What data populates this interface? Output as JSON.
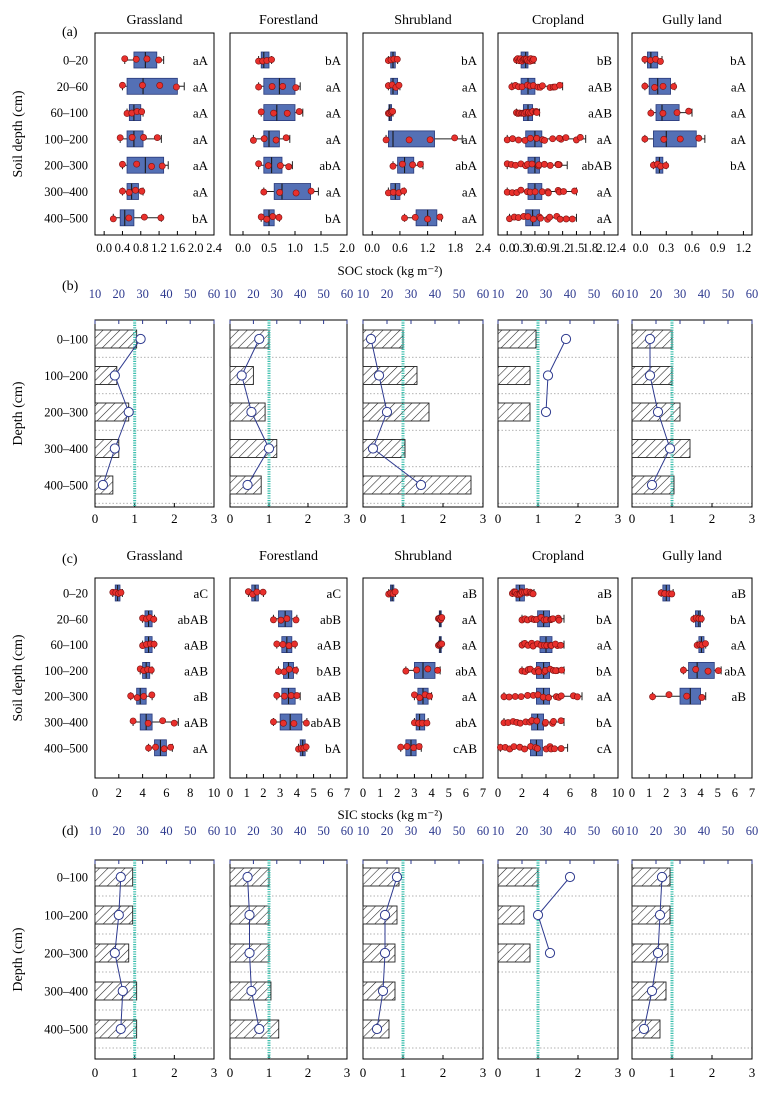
{
  "figure": {
    "panel_labels": [
      "(a)",
      "(b)",
      "(c)",
      "(d)"
    ],
    "colors": {
      "box": "#5470b5",
      "dot": "#e8302c",
      "axis_top": "#2e3a8f",
      "ref_line": "#3dbfae",
      "profile": "#2e3a8f",
      "grid_dot": "#999999",
      "grid_blue": "#3446c0",
      "grid_orange": "#d08a3a"
    }
  },
  "chart_data": [
    {
      "id": "a",
      "type": "box",
      "panel_label": "(a)",
      "ylabel": "Soil depth (cm)",
      "xlabel": "SOC stock (kg m⁻²)",
      "depths": [
        "0–20",
        "20–60",
        "60–100",
        "100–200",
        "200–300",
        "300–400",
        "400–500"
      ],
      "subplots": [
        {
          "title": "Grassland",
          "xlim": [
            -0.2,
            2.4
          ],
          "ticks": [
            0.0,
            0.4,
            0.8,
            1.2,
            1.6,
            2.0,
            2.4
          ],
          "tick_labels": [
            "0.0",
            "0.4",
            "0.8",
            "1.2",
            "1.6",
            "2.0",
            "2.4"
          ],
          "boxes": [
            [
              0.45,
              0.65,
              0.9,
              1.15,
              1.3
            ],
            [
              0.4,
              0.5,
              0.85,
              1.6,
              1.75
            ],
            [
              0.5,
              0.55,
              0.65,
              0.8,
              0.85
            ],
            [
              0.35,
              0.5,
              0.65,
              0.85,
              1.25
            ],
            [
              0.4,
              0.5,
              0.9,
              1.3,
              1.4
            ],
            [
              0.4,
              0.5,
              0.6,
              0.75,
              0.85
            ],
            [
              0.2,
              0.35,
              0.45,
              0.65,
              1.25
            ]
          ],
          "letters": [
            "aA",
            "aA",
            "aA",
            "aA",
            "aA",
            "aA",
            "bA"
          ]
        },
        {
          "title": "Forestland",
          "xlim": [
            -0.25,
            2.0
          ],
          "ticks": [
            0.0,
            0.5,
            1.0,
            1.5,
            2.0
          ],
          "tick_labels": [
            "0.0",
            "0.5",
            "1.0",
            "1.5",
            "2.0"
          ],
          "boxes": [
            [
              0.3,
              0.35,
              0.4,
              0.5,
              0.55
            ],
            [
              0.3,
              0.4,
              0.7,
              1.0,
              1.1
            ],
            [
              0.35,
              0.4,
              0.65,
              1.0,
              1.15
            ],
            [
              0.2,
              0.4,
              0.5,
              0.7,
              0.9
            ],
            [
              0.3,
              0.4,
              0.55,
              0.75,
              0.95
            ],
            [
              0.4,
              0.6,
              0.75,
              1.3,
              1.45
            ],
            [
              0.35,
              0.4,
              0.5,
              0.6,
              0.7
            ]
          ],
          "letters": [
            "bA",
            "aA",
            "aA",
            "aA",
            "abA",
            "aA",
            "bA"
          ]
        },
        {
          "title": "Shrubland",
          "xlim": [
            -0.2,
            2.4
          ],
          "ticks": [
            0.0,
            0.6,
            1.2,
            1.8,
            2.4
          ],
          "tick_labels": [
            "0.0",
            "0.6",
            "1.2",
            "1.8",
            "2.4"
          ],
          "boxes": [
            [
              0.35,
              0.4,
              0.45,
              0.5,
              0.55
            ],
            [
              0.35,
              0.4,
              0.45,
              0.55,
              0.6
            ],
            [
              0.35,
              0.36,
              0.38,
              0.42,
              0.45
            ],
            [
              0.3,
              0.35,
              0.45,
              1.35,
              1.95
            ],
            [
              0.45,
              0.55,
              0.7,
              0.9,
              1.1
            ],
            [
              0.35,
              0.4,
              0.5,
              0.6,
              0.7
            ],
            [
              0.7,
              0.95,
              1.2,
              1.4,
              1.5
            ]
          ],
          "letters": [
            "bA",
            "aA",
            "aA",
            "aA",
            "abA",
            "aA",
            "aA"
          ]
        },
        {
          "title": "Cropland",
          "xlim": [
            -0.2,
            2.4
          ],
          "ticks": [
            0.0,
            0.3,
            0.6,
            0.9,
            1.2,
            1.5,
            1.8,
            2.1,
            2.4
          ],
          "tick_labels": [
            "0.0",
            "0.3",
            "0.6",
            "0.9",
            "1.2",
            "1.5",
            "1.8",
            "2.1",
            "2.4"
          ],
          "boxes": [
            [
              0.2,
              0.3,
              0.4,
              0.45,
              0.6
            ],
            [
              0.1,
              0.3,
              0.45,
              0.6,
              1.2
            ],
            [
              0.2,
              0.35,
              0.45,
              0.55,
              0.7
            ],
            [
              0.0,
              0.4,
              0.6,
              0.75,
              1.7
            ],
            [
              0.0,
              0.45,
              0.6,
              0.7,
              1.3
            ],
            [
              0.0,
              0.45,
              0.6,
              0.75,
              1.5
            ],
            [
              0.05,
              0.4,
              0.55,
              0.7,
              1.5
            ]
          ],
          "letters": [
            "bB",
            "aAB",
            "aAB",
            "aA",
            "abAB",
            "aA",
            "aA"
          ]
        },
        {
          "title": "Gully land",
          "xlim": [
            -0.1,
            1.3
          ],
          "ticks": [
            0.0,
            0.3,
            0.6,
            0.9,
            1.2
          ],
          "tick_labels": [
            "0.0",
            "0.3",
            "0.6",
            "0.9",
            "1.2"
          ],
          "boxes": [
            [
              0.05,
              0.08,
              0.12,
              0.2,
              0.25
            ],
            [
              0.05,
              0.1,
              0.2,
              0.35,
              0.4
            ],
            [
              0.12,
              0.18,
              0.25,
              0.45,
              0.6
            ],
            [
              0.05,
              0.15,
              0.3,
              0.65,
              0.75
            ],
            [
              0.15,
              0.18,
              0.22,
              0.26,
              0.3
            ]
          ],
          "letters": [
            "bA",
            "aA",
            "aA",
            "aA",
            "bA"
          ]
        }
      ]
    },
    {
      "id": "b",
      "type": "bar_profile",
      "panel_label": "(b)",
      "ylabel": "Depth (cm)",
      "depths": [
        "0–100",
        "100–200",
        "200–300",
        "300–400",
        "400–500"
      ],
      "bottom_ticks": [
        "0",
        "1",
        "2",
        "3"
      ],
      "bottom_xlim": [
        0,
        3
      ],
      "top_ticks": [
        "10",
        "20",
        "30",
        "40",
        "50",
        "60"
      ],
      "top_xlim": [
        10,
        60
      ],
      "ref_line": 1,
      "subplots": [
        {
          "bars": [
            1.05,
            0.55,
            0.85,
            0.6,
            0.45
          ],
          "profile": [
            1.15,
            0.5,
            0.85,
            0.5,
            0.2
          ]
        },
        {
          "bars": [
            1.0,
            0.6,
            0.9,
            1.2,
            0.8
          ],
          "profile": [
            0.75,
            0.3,
            0.55,
            1.0,
            0.45
          ]
        },
        {
          "bars": [
            1.0,
            1.35,
            1.65,
            1.05,
            2.7
          ],
          "profile": [
            0.2,
            0.4,
            0.6,
            0.25,
            1.45
          ]
        },
        {
          "bars": [
            0.95,
            0.8,
            0.8,
            null,
            null
          ],
          "profile": [
            1.7,
            1.25,
            1.2,
            null,
            null
          ]
        },
        {
          "bars": [
            1.0,
            1.0,
            1.2,
            1.45,
            1.05
          ],
          "profile": [
            0.45,
            0.45,
            0.65,
            0.95,
            0.5
          ]
        }
      ]
    },
    {
      "id": "c",
      "type": "box",
      "panel_label": "(c)",
      "ylabel": "Soil depth (cm)",
      "xlabel": "SIC stocks (kg m⁻²)",
      "depths": [
        "0–20",
        "20–60",
        "60–100",
        "100–200",
        "200–300",
        "300–400",
        "400–500"
      ],
      "subplots": [
        {
          "title": "Grassland",
          "xlim": [
            0,
            10
          ],
          "ticks": [
            0,
            2,
            4,
            6,
            8,
            10
          ],
          "tick_labels": [
            "0",
            "2",
            "4",
            "6",
            "8",
            "10"
          ],
          "boxes": [
            [
              1.5,
              1.7,
              1.9,
              2.1,
              2.3
            ],
            [
              4.0,
              4.2,
              4.5,
              4.8,
              5.0
            ],
            [
              4.0,
              4.2,
              4.5,
              4.8,
              5.0
            ],
            [
              3.8,
              4.0,
              4.3,
              4.6,
              4.8
            ],
            [
              3.0,
              3.5,
              3.8,
              4.3,
              4.8
            ],
            [
              3.2,
              3.8,
              4.3,
              4.8,
              7.0
            ],
            [
              4.5,
              5.0,
              5.5,
              6.0,
              6.5
            ]
          ],
          "letters": [
            "aC",
            "abAB",
            "aAB",
            "aAB",
            "aB",
            "aAB",
            "aA"
          ]
        },
        {
          "title": "Forestland",
          "xlim": [
            0,
            7
          ],
          "ticks": [
            0,
            1,
            2,
            3,
            4,
            5,
            6,
            7
          ],
          "tick_labels": [
            "0",
            "1",
            "2",
            "3",
            "4",
            "5",
            "6",
            "7"
          ],
          "boxes": [
            [
              1.1,
              1.3,
              1.5,
              1.7,
              2.0
            ],
            [
              2.6,
              2.9,
              3.3,
              3.7,
              4.0
            ],
            [
              2.8,
              3.1,
              3.4,
              3.7,
              3.9
            ],
            [
              2.9,
              3.2,
              3.5,
              3.8,
              4.0
            ],
            [
              2.8,
              3.1,
              3.5,
              3.9,
              4.2
            ],
            [
              2.6,
              3.0,
              3.6,
              4.3,
              4.6
            ],
            [
              4.1,
              4.2,
              4.35,
              4.5,
              4.6
            ]
          ],
          "letters": [
            "aC",
            "abB",
            "aAB",
            "bAB",
            "aAB",
            "abAB",
            "bA"
          ]
        },
        {
          "title": "Shrubland",
          "xlim": [
            0,
            7
          ],
          "ticks": [
            0,
            1,
            2,
            3,
            4,
            5,
            6,
            7
          ],
          "tick_labels": [
            "0",
            "1",
            "2",
            "3",
            "4",
            "5",
            "6",
            "7"
          ],
          "boxes": [
            [
              1.5,
              1.6,
              1.7,
              1.8,
              1.9
            ],
            [
              4.4,
              4.45,
              4.5,
              4.55,
              4.6
            ],
            [
              4.4,
              4.45,
              4.5,
              4.55,
              4.6
            ],
            [
              2.5,
              3.0,
              3.5,
              4.2,
              4.5
            ],
            [
              3.0,
              3.2,
              3.5,
              3.8,
              4.0
            ],
            [
              3.0,
              3.1,
              3.3,
              3.6,
              3.8
            ],
            [
              2.2,
              2.5,
              2.8,
              3.1,
              3.4
            ]
          ],
          "letters": [
            "aB",
            "aA",
            "aA",
            "abA",
            "aA",
            "abA",
            "cAB"
          ]
        },
        {
          "title": "Cropland",
          "xlim": [
            0,
            10
          ],
          "ticks": [
            0,
            2,
            4,
            6,
            8,
            10
          ],
          "tick_labels": [
            "0",
            "2",
            "4",
            "6",
            "8",
            "10"
          ],
          "boxes": [
            [
              1.2,
              1.5,
              1.8,
              2.2,
              3.0
            ],
            [
              2.0,
              3.3,
              3.8,
              4.3,
              5.5
            ],
            [
              2.0,
              3.5,
              4.0,
              4.5,
              5.5
            ],
            [
              2.0,
              3.2,
              3.8,
              4.3,
              5.5
            ],
            [
              0.5,
              3.2,
              3.8,
              4.3,
              7.0
            ],
            [
              0.5,
              2.8,
              3.3,
              3.8,
              5.5
            ],
            [
              0.2,
              2.7,
              3.2,
              3.7,
              5.8
            ]
          ],
          "letters": [
            "aB",
            "bA",
            "aA",
            "bA",
            "aA",
            "bA",
            "cA"
          ]
        },
        {
          "title": "Gully land",
          "xlim": [
            0,
            7
          ],
          "ticks": [
            0,
            1,
            2,
            3,
            4,
            5,
            6,
            7
          ],
          "tick_labels": [
            "0",
            "1",
            "2",
            "3",
            "4",
            "5",
            "6",
            "7"
          ],
          "boxes": [
            [
              1.7,
              1.8,
              2.0,
              2.2,
              2.4
            ],
            [
              3.6,
              3.7,
              3.9,
              4.0,
              4.1
            ],
            [
              3.8,
              3.9,
              4.05,
              4.2,
              4.3
            ],
            [
              3.0,
              3.3,
              3.8,
              4.8,
              5.2
            ],
            [
              1.2,
              2.8,
              3.4,
              4.0,
              4.3
            ]
          ],
          "letters": [
            "aB",
            "bA",
            "aA",
            "abA",
            "aB"
          ]
        }
      ]
    },
    {
      "id": "d",
      "type": "bar_profile",
      "panel_label": "(d)",
      "ylabel": "Depth (cm)",
      "depths": [
        "0–100",
        "100–200",
        "200–300",
        "300–400",
        "400–500"
      ],
      "bottom_ticks": [
        "0",
        "1",
        "2",
        "3"
      ],
      "bottom_xlim": [
        0,
        3
      ],
      "top_ticks": [
        "10",
        "20",
        "30",
        "40",
        "50",
        "60"
      ],
      "top_xlim": [
        10,
        60
      ],
      "ref_line": 1,
      "subplots": [
        {
          "bars": [
            0.95,
            0.95,
            0.85,
            1.05,
            1.05
          ],
          "profile": [
            0.65,
            0.6,
            0.5,
            0.7,
            0.65
          ]
        },
        {
          "bars": [
            1.0,
            1.0,
            1.0,
            1.05,
            1.25
          ],
          "profile": [
            0.45,
            0.5,
            0.5,
            0.55,
            0.75
          ]
        },
        {
          "bars": [
            0.9,
            0.85,
            0.8,
            0.8,
            0.65
          ],
          "profile": [
            0.85,
            0.55,
            0.55,
            0.5,
            0.35
          ]
        },
        {
          "bars": [
            1.0,
            0.65,
            0.8,
            null,
            null
          ],
          "profile": [
            1.8,
            1.0,
            1.3,
            null,
            null
          ]
        },
        {
          "bars": [
            0.95,
            0.95,
            0.9,
            0.85,
            0.7
          ],
          "profile": [
            0.75,
            0.7,
            0.65,
            0.5,
            0.3
          ]
        }
      ]
    }
  ]
}
